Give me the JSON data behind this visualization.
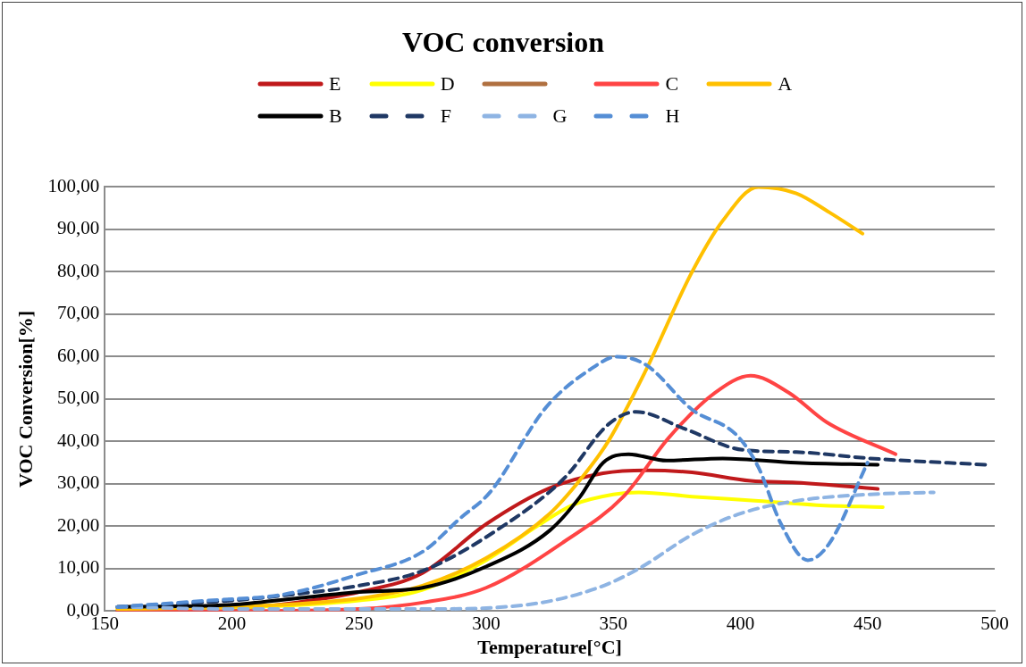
{
  "chart_data": {
    "type": "line",
    "title": "VOC conversion",
    "xlabel": "Temperature[°C]",
    "ylabel": "VOC Conversion[%]",
    "xlim": [
      150,
      500
    ],
    "xticks": [
      150,
      200,
      250,
      300,
      350,
      400,
      450,
      500
    ],
    "ylim": [
      0,
      100
    ],
    "yticks": [
      {
        "value": 0,
        "label": "0,00"
      },
      {
        "value": 10,
        "label": "10,00"
      },
      {
        "value": 20,
        "label": "20,00"
      },
      {
        "value": 30,
        "label": "30,00"
      },
      {
        "value": 40,
        "label": "40,00"
      },
      {
        "value": 50,
        "label": "50,00"
      },
      {
        "value": 60,
        "label": "60,00"
      },
      {
        "value": 70,
        "label": "70,00"
      },
      {
        "value": 80,
        "label": "80,00"
      },
      {
        "value": 90,
        "label": "90,00"
      },
      {
        "value": 100,
        "label": "100,00"
      }
    ],
    "grid": "y",
    "legend": "top",
    "marker": "none",
    "series": [
      {
        "name": "E",
        "color": "#c0191b",
        "line_style": "solid",
        "x": [
          155,
          200,
          225,
          250,
          275,
          300,
          325,
          346,
          363,
          381,
          404,
          422,
          454
        ],
        "values": [
          0,
          0.5,
          2,
          4.5,
          9,
          20.5,
          29,
          32.5,
          33.2,
          32.7,
          30.7,
          30.3,
          28.8
        ]
      },
      {
        "name": "D",
        "color": "#ffff00",
        "line_style": "solid",
        "x": [
          155,
          200,
          250,
          275,
          300,
          320,
          334,
          350,
          360,
          381,
          407,
          430,
          456
        ],
        "values": [
          0.5,
          0.8,
          2.5,
          5,
          12,
          20,
          25,
          27.5,
          28,
          27,
          26,
          25,
          24.5
        ]
      },
      {
        "name": "C",
        "color": "#ff4444",
        "line_style": "solid",
        "x": [
          155,
          200,
          250,
          275,
          300,
          331,
          354,
          372,
          390,
          404,
          419,
          434,
          461
        ],
        "values": [
          0,
          0,
          0.5,
          2,
          5.5,
          16.5,
          27,
          41,
          51.5,
          55.5,
          51.5,
          44.5,
          37
        ]
      },
      {
        "name": "A",
        "color": "#ffc000",
        "line_style": "solid",
        "x": [
          155,
          200,
          250,
          275,
          300,
          325,
          337,
          348,
          363,
          381,
          393,
          407,
          422,
          435,
          448
        ],
        "values": [
          0.5,
          1,
          3,
          6,
          12.5,
          23,
          31,
          40,
          57,
          80,
          92,
          100,
          98.5,
          94,
          89
        ]
      },
      {
        "name": "B",
        "color": "#000000",
        "line_style": "solid",
        "x": [
          155,
          200,
          225,
          250,
          275,
          300,
          325,
          337,
          346,
          356,
          371,
          393,
          422,
          454
        ],
        "values": [
          1,
          1.5,
          3,
          4.5,
          5.5,
          10.5,
          19,
          27,
          35,
          37,
          35.5,
          36,
          35,
          34.5
        ]
      },
      {
        "name": "F",
        "color": "#1f3864",
        "line_style": "dashed",
        "x": [
          155,
          200,
          225,
          250,
          275,
          304,
          331,
          348,
          359,
          378,
          401,
          422,
          451,
          497
        ],
        "values": [
          1,
          2.5,
          4,
          6,
          9.5,
          19,
          31.5,
          44,
          47,
          43,
          38,
          37.5,
          36,
          34.5
        ]
      },
      {
        "name": "G",
        "color": "#8eb4e3",
        "line_style": "dashed",
        "x": [
          155,
          200,
          250,
          275,
          316,
          344,
          360,
          381,
          400,
          422,
          450,
          476
        ],
        "values": [
          1,
          0.5,
          0.5,
          0.5,
          1.5,
          5.5,
          10,
          18,
          23,
          26,
          27.5,
          28
        ]
      },
      {
        "name": "H",
        "color": "#558ed5",
        "line_style": "dashed",
        "x": [
          155,
          191,
          221,
          249,
          275,
          290,
          301.5,
          323.5,
          341,
          351.5,
          363,
          381,
          398.5,
          407,
          416,
          426.5,
          435,
          450
        ],
        "values": [
          1,
          2.5,
          4,
          8.5,
          14,
          22,
          28,
          48,
          57,
          60,
          58,
          47.5,
          41.5,
          34,
          20.5,
          12,
          16,
          35
        ]
      }
    ]
  }
}
